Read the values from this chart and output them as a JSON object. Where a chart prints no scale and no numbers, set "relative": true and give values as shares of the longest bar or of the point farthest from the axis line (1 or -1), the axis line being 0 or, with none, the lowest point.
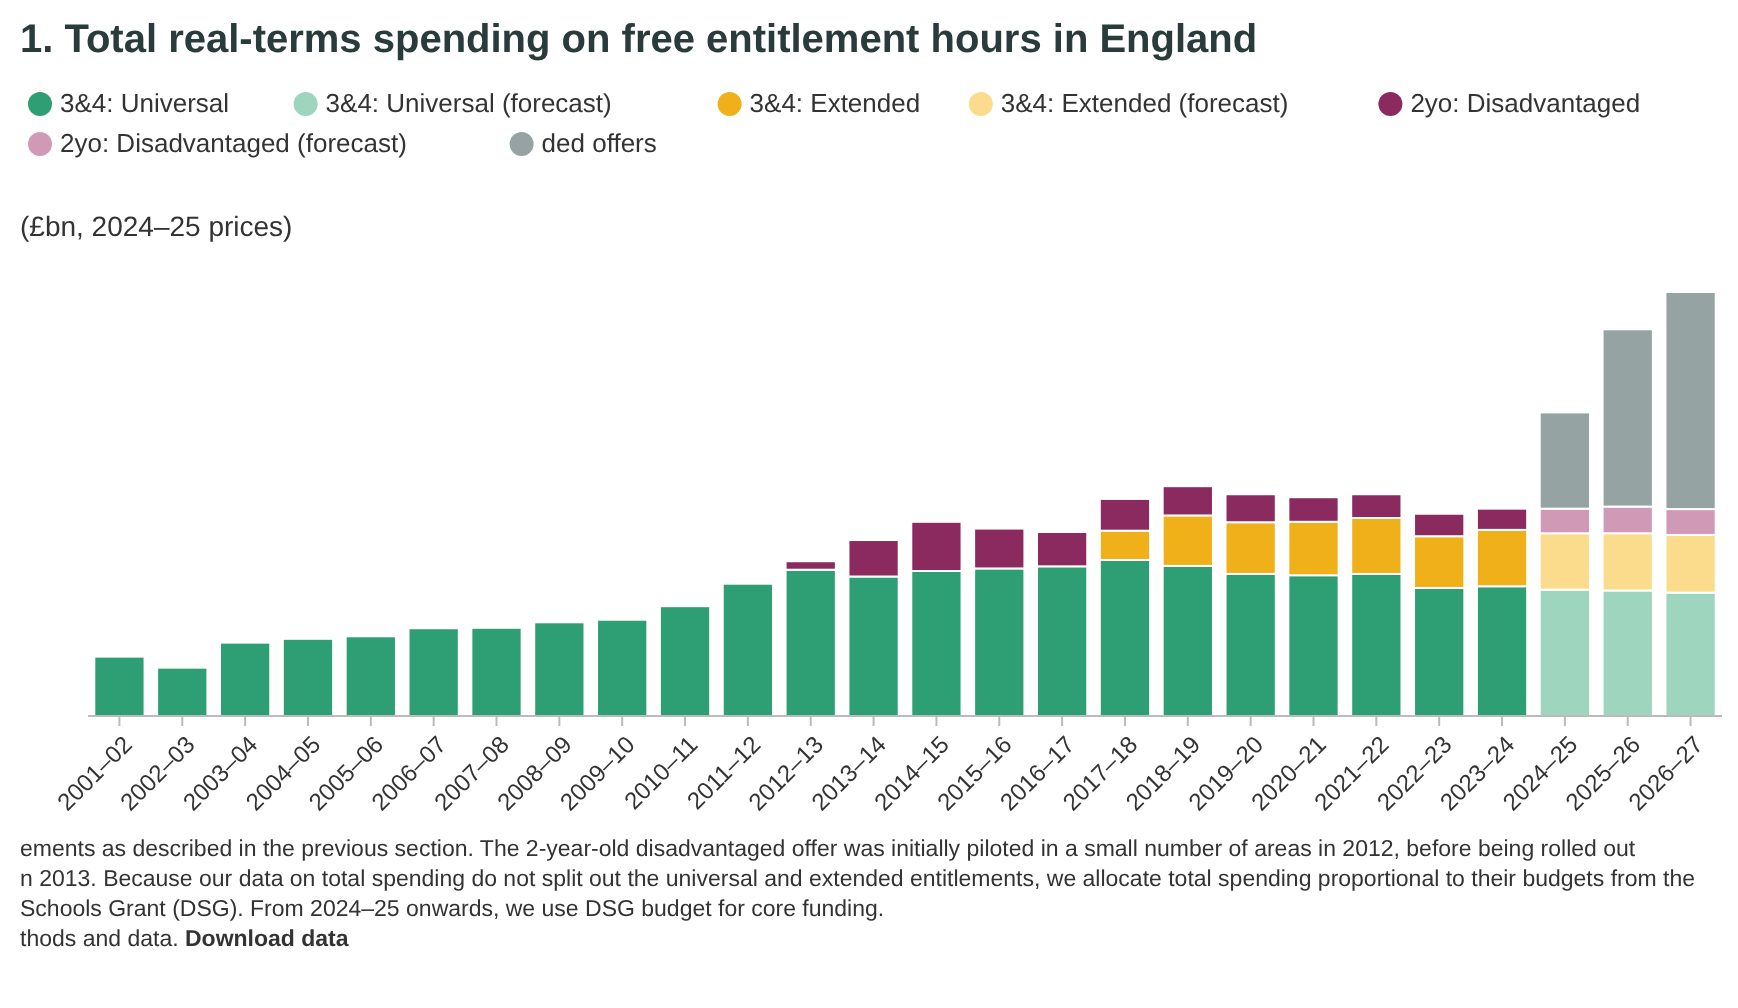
{
  "chart_data": {
    "type": "bar",
    "stacked": true,
    "relative": true,
    "title": "1. Total real-terms spending on free entitlement hours in England",
    "ylabel": "(£bn, 2024–25 prices)",
    "legend": "top",
    "categories": [
      "2001–02",
      "2002–03",
      "2003–04",
      "2004–05",
      "2005–06",
      "2006–07",
      "2007–08",
      "2008–09",
      "2009–10",
      "2010–11",
      "2011–12",
      "2012–13",
      "2013–14",
      "2014–15",
      "2015–16",
      "2016–17",
      "2017–18",
      "2018–19",
      "2019–20",
      "2020–21",
      "2021–22",
      "2022–23",
      "2023–24",
      "2024–25",
      "2025–26",
      "2026–27"
    ],
    "series": [
      {
        "name": "3&4: Universal",
        "color": "#2e9e74",
        "values": [
          0.14,
          0.114,
          0.173,
          0.182,
          0.188,
          0.207,
          0.208,
          0.221,
          0.227,
          0.259,
          0.312,
          0.345,
          0.329,
          0.342,
          0.348,
          0.353,
          0.368,
          0.354,
          0.335,
          0.332,
          0.335,
          0.302,
          0.306,
          null,
          null,
          null
        ]
      },
      {
        "name": "3&4: Universal (forecast)",
        "color": "#9dd5bf",
        "values": [
          null,
          null,
          null,
          null,
          null,
          null,
          null,
          null,
          null,
          null,
          null,
          null,
          null,
          null,
          null,
          null,
          null,
          null,
          null,
          null,
          null,
          null,
          null,
          0.298,
          0.296,
          0.291
        ]
      },
      {
        "name": "3&4: Extended",
        "color": "#f0b01a",
        "values": [
          null,
          null,
          null,
          null,
          null,
          null,
          null,
          null,
          null,
          null,
          null,
          null,
          null,
          null,
          null,
          null,
          0.069,
          0.119,
          0.122,
          0.126,
          0.132,
          0.122,
          0.133,
          null,
          null,
          null
        ]
      },
      {
        "name": "3&4: Extended (forecast)",
        "color": "#fadc8c",
        "values": [
          null,
          null,
          null,
          null,
          null,
          null,
          null,
          null,
          null,
          null,
          null,
          null,
          null,
          null,
          null,
          null,
          null,
          null,
          null,
          null,
          null,
          null,
          null,
          0.133,
          0.135,
          0.136
        ]
      },
      {
        "name": "2yo: Disadvantaged",
        "color": "#8b2a5e",
        "values": [
          null,
          null,
          null,
          null,
          null,
          null,
          null,
          null,
          null,
          null,
          null,
          0.02,
          0.086,
          0.116,
          0.094,
          0.081,
          0.075,
          0.069,
          0.066,
          0.058,
          0.056,
          0.053,
          0.05,
          null,
          null,
          null
        ]
      },
      {
        "name": "2yo: Disadvantaged (forecast)",
        "color": "#d09ab6",
        "values": [
          null,
          null,
          null,
          null,
          null,
          null,
          null,
          null,
          null,
          null,
          null,
          null,
          null,
          null,
          null,
          null,
          null,
          null,
          null,
          null,
          null,
          null,
          null,
          0.058,
          0.063,
          0.061
        ]
      },
      {
        "name": "ded offers",
        "color": "#95a3a2",
        "values": [
          null,
          null,
          null,
          null,
          null,
          null,
          null,
          null,
          null,
          null,
          null,
          null,
          null,
          null,
          null,
          null,
          null,
          null,
          null,
          null,
          null,
          null,
          null,
          0.227,
          0.418,
          0.512
        ]
      }
    ],
    "annotations": [
      "ements as described in the previous section. The 2-year-old disadvantaged offer was initially piloted in a small number of areas in 2012, before being rolled out",
      "n 2013. Because our data on total spending do not split out the universal and extended entitlements, we allocate total spending proportional to their budgets from the",
      "Schools Grant (DSG). From 2024–25 onwards, we use DSG budget for core funding.",
      "thods and data.",
      "Download data"
    ]
  }
}
